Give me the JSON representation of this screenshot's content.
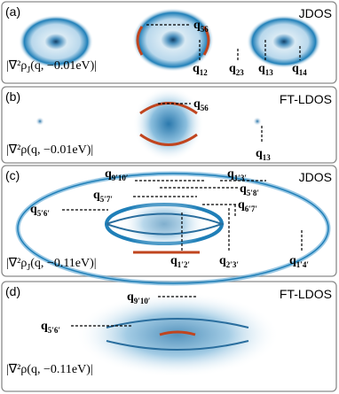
{
  "panels": [
    {
      "letter": "(a)",
      "title": "JDOS",
      "formula": {
        "main": "|∇²ρ",
        "sub": "J",
        "rest": "(q, −0.01eV)|"
      },
      "labels": [
        {
          "symbol": "q",
          "subscript": "56"
        },
        {
          "symbol": "q",
          "subscript": "12"
        },
        {
          "symbol": "q",
          "subscript": "23"
        },
        {
          "symbol": "q",
          "subscript": "13"
        },
        {
          "symbol": "q",
          "subscript": "14"
        }
      ]
    },
    {
      "letter": "(b)",
      "title": "FT-LDOS",
      "formula": {
        "main": "|∇²ρ(q, −0.01eV)|"
      },
      "labels": [
        {
          "symbol": "q",
          "subscript": "56"
        },
        {
          "symbol": "q",
          "subscript": "13"
        }
      ]
    },
    {
      "letter": "(c)",
      "title": "JDOS",
      "formula": {
        "main": "|∇²ρ",
        "sub": "J",
        "rest": "(q, −0.11eV)|"
      },
      "labels": [
        {
          "symbol": "q",
          "subscript": "9′10′"
        },
        {
          "symbol": "q",
          "subscript": "1′3′"
        },
        {
          "symbol": "q",
          "subscript": "5′8′"
        },
        {
          "symbol": "q",
          "subscript": "5′7′"
        },
        {
          "symbol": "q",
          "subscript": "6′7′"
        },
        {
          "symbol": "q",
          "subscript": "5′6′"
        },
        {
          "symbol": "q",
          "subscript": "1′2′"
        },
        {
          "symbol": "q",
          "subscript": "2′3′"
        },
        {
          "symbol": "q",
          "subscript": "1′4′"
        }
      ]
    },
    {
      "letter": "(d)",
      "title": "FT-LDOS",
      "formula": {
        "main": "|∇²ρ(q, −0.11eV)|"
      },
      "labels": [
        {
          "symbol": "q",
          "subscript": "9′10′"
        },
        {
          "symbol": "q",
          "subscript": "5′6′"
        }
      ]
    }
  ]
}
